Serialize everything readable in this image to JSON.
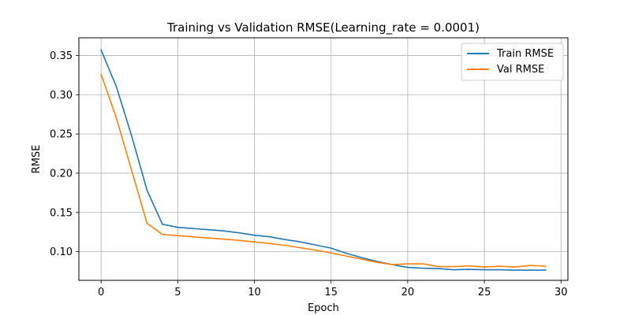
{
  "chart_data": {
    "type": "line",
    "title": "Training vs Validation RMSE(Learning_rate = 0.0001)",
    "xlabel": "Epoch",
    "ylabel": "RMSE",
    "xlim": [
      -1.45,
      30.45
    ],
    "ylim": [
      0.0635,
      0.3725
    ],
    "x_ticks": [
      0,
      5,
      10,
      15,
      20,
      25,
      30
    ],
    "y_ticks": [
      0.1,
      0.15,
      0.2,
      0.25,
      0.3,
      0.35
    ],
    "x_tick_labels": [
      "0",
      "5",
      "10",
      "15",
      "20",
      "25",
      "30"
    ],
    "y_tick_labels": [
      "0.10",
      "0.15",
      "0.20",
      "0.25",
      "0.30",
      "0.35"
    ],
    "grid": true,
    "legend_position": "top-right",
    "x": [
      0,
      1,
      2,
      3,
      4,
      5,
      6,
      7,
      8,
      9,
      10,
      11,
      12,
      13,
      14,
      15,
      16,
      17,
      18,
      19,
      20,
      21,
      22,
      23,
      24,
      25,
      26,
      27,
      28,
      29
    ],
    "series": [
      {
        "name": "Train RMSE",
        "color": "#1f77b4",
        "values": [
          0.357,
          0.31,
          0.247,
          0.178,
          0.135,
          0.131,
          0.1295,
          0.128,
          0.1265,
          0.124,
          0.121,
          0.119,
          0.1155,
          0.1125,
          0.1085,
          0.1045,
          0.098,
          0.0925,
          0.0875,
          0.0835,
          0.08,
          0.079,
          0.0785,
          0.077,
          0.0775,
          0.077,
          0.077,
          0.0765,
          0.0765,
          0.0765
        ]
      },
      {
        "name": "Val RMSE",
        "color": "#ff7f0e",
        "values": [
          0.326,
          0.27,
          0.203,
          0.136,
          0.122,
          0.1205,
          0.119,
          0.1175,
          0.116,
          0.1145,
          0.1125,
          0.1105,
          0.108,
          0.105,
          0.102,
          0.0985,
          0.0945,
          0.0905,
          0.0865,
          0.0835,
          0.0845,
          0.0845,
          0.081,
          0.081,
          0.082,
          0.0805,
          0.0815,
          0.0805,
          0.0825,
          0.0815
        ]
      }
    ]
  }
}
